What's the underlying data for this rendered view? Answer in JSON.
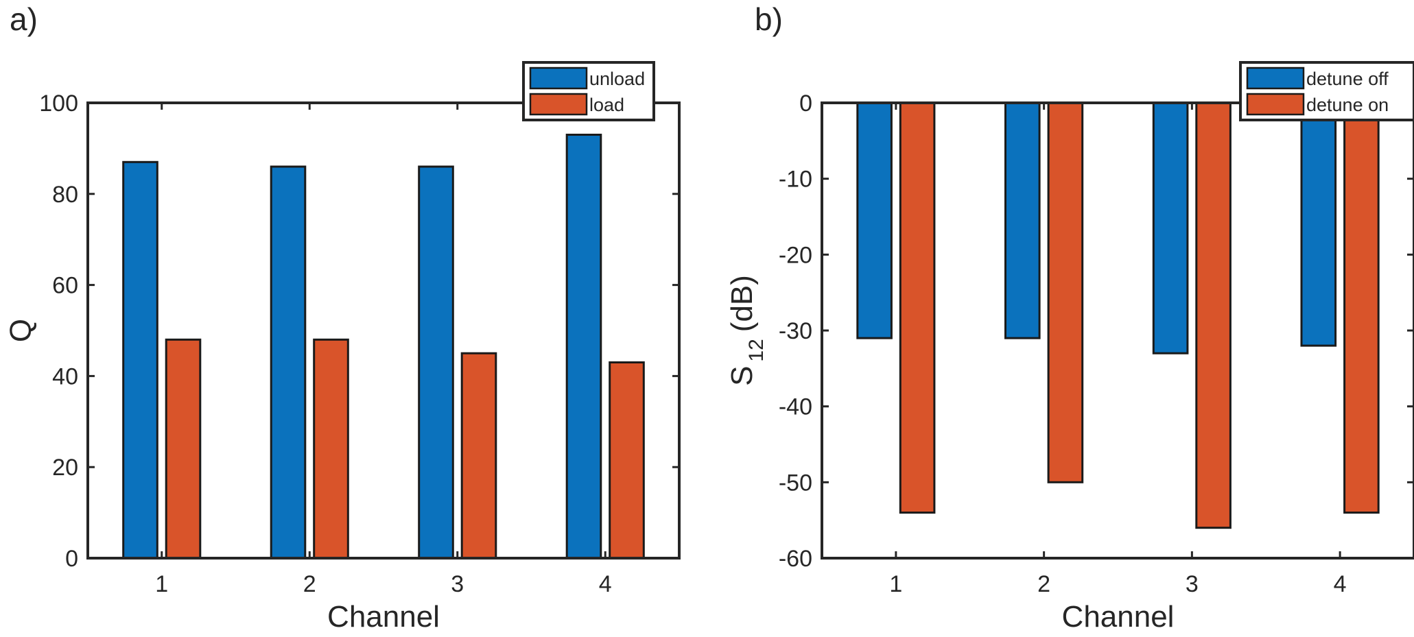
{
  "colors": {
    "series1": "#0b72bd",
    "series2": "#d9542a",
    "axis": "#262626",
    "background": "#ffffff"
  },
  "chart_data": [
    {
      "panel_label": "a)",
      "type": "bar",
      "categories": [
        "1",
        "2",
        "3",
        "4"
      ],
      "series": [
        {
          "name": "unload",
          "values": [
            87,
            86,
            86,
            93
          ]
        },
        {
          "name": "load",
          "values": [
            48,
            48,
            45,
            43
          ]
        }
      ],
      "xlabel": "Channel",
      "ylabel": "Q",
      "ylim": [
        0,
        100
      ],
      "yticks": [
        0,
        20,
        40,
        60,
        80,
        100
      ],
      "ytick_labels": [
        "0",
        "20",
        "40",
        "60",
        "80",
        "100"
      ],
      "legend_position": "top-right",
      "grid": false
    },
    {
      "panel_label": "b)",
      "type": "bar",
      "categories": [
        "1",
        "2",
        "3",
        "4"
      ],
      "series": [
        {
          "name": "detune off",
          "values": [
            -31,
            -31,
            -33,
            -32
          ]
        },
        {
          "name": "detune on",
          "values": [
            -54,
            -50,
            -56,
            -54
          ]
        }
      ],
      "xlabel": "Channel",
      "ylabel_main": "S",
      "ylabel_sub": "12",
      "ylabel_unit": "(dB)",
      "ylim": [
        -60,
        0
      ],
      "yticks": [
        0,
        -10,
        -20,
        -30,
        -40,
        -50,
        -60
      ],
      "ytick_labels": [
        "0",
        "-10",
        "-20",
        "-30",
        "-40",
        "-50",
        "-60"
      ],
      "legend_position": "top-right",
      "grid": false
    }
  ]
}
